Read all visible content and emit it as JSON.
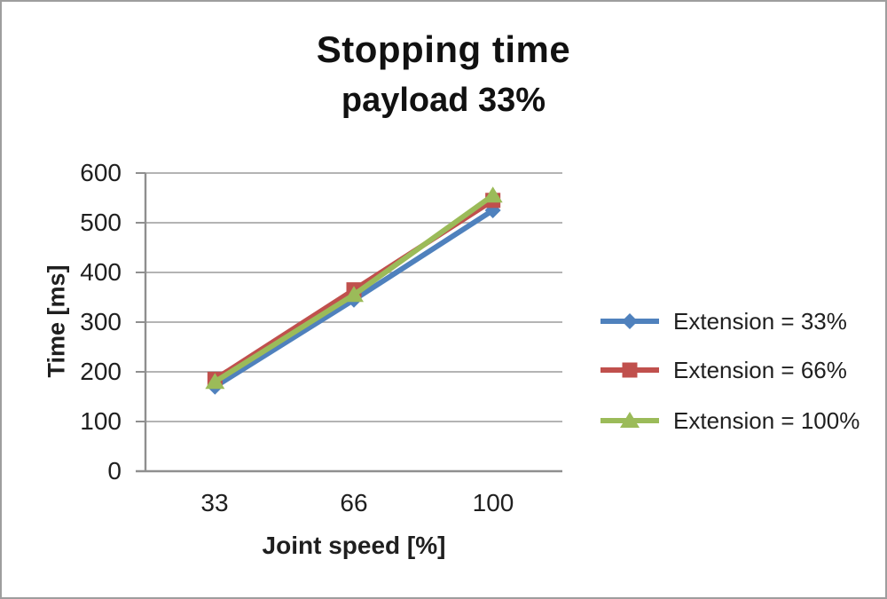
{
  "page": {
    "background": "#FFFFFF",
    "border_color": "#9E9E9E"
  },
  "chart_data": {
    "type": "line",
    "title": "Stopping time",
    "subtitle": "payload 33%",
    "xlabel": "Joint speed [%]",
    "ylabel": "Time [ms]",
    "categories": [
      "33",
      "66",
      "100"
    ],
    "y_tick_labels": [
      "600",
      "500",
      "400",
      "300",
      "200",
      "100",
      "0"
    ],
    "ylim": [
      0,
      600
    ],
    "y_step": 100,
    "grid": "horizontal-only",
    "legend_position": "right",
    "series": [
      {
        "name": "Extension = 33%",
        "marker": "diamond",
        "color": "#4F81BD",
        "values": [
          170,
          345,
          525
        ]
      },
      {
        "name": "Extension = 66%",
        "marker": "square",
        "color": "#C0504D",
        "values": [
          185,
          365,
          545
        ]
      },
      {
        "name": "Extension = 100%",
        "marker": "triangle",
        "color": "#9BBB59",
        "values": [
          180,
          355,
          555
        ]
      }
    ],
    "colors": {
      "gridline": "#A9A9A9",
      "axis": "#8F8F8F",
      "text": "#1F1F1F"
    }
  }
}
